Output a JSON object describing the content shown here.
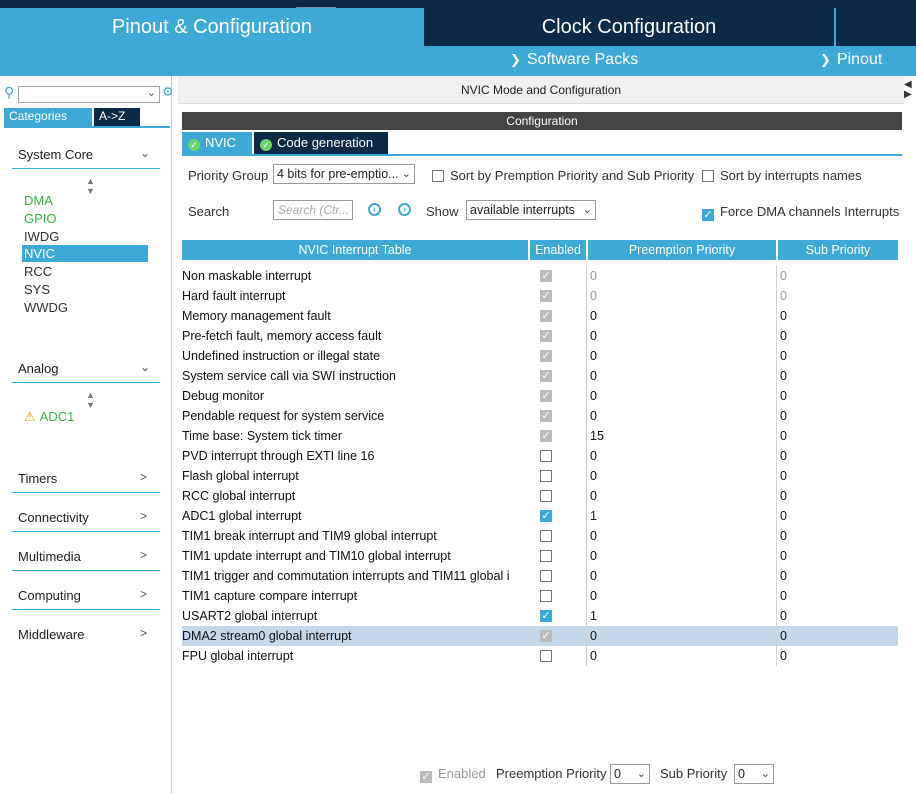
{
  "tabs": {
    "pinout": "Pinout & Configuration",
    "clock": "Clock Configuration"
  },
  "subbar": {
    "software_packs": "Software Packs",
    "pinout": "Pinout"
  },
  "left": {
    "tab_categories": "Categories",
    "tab_az": "A->Z",
    "system_core": {
      "label": "System Core",
      "items": [
        "DMA",
        "GPIO",
        "IWDG",
        "NVIC",
        "RCC",
        "SYS",
        "WWDG"
      ]
    },
    "analog": {
      "label": "Analog",
      "items": [
        "ADC1"
      ]
    },
    "categories": [
      "Timers",
      "Connectivity",
      "Multimedia",
      "Computing",
      "Middleware"
    ]
  },
  "right": {
    "mode_title": "NVIC Mode and Configuration",
    "config_bar": "Configuration",
    "tab_nvic": "NVIC",
    "tab_code": "Code generation",
    "priority_group_label": "Priority Group",
    "priority_group_value": "4 bits for pre-emptio...",
    "sort_premption": "Sort by Premption Priority and Sub Priority",
    "sort_names": "Sort by interrupts names",
    "search_label": "Search",
    "search_placeholder": "Search (Ctr...",
    "show_label": "Show",
    "show_value": "available interrupts",
    "force_dma": "Force DMA channels Interrupts",
    "headers": [
      "NVIC Interrupt Table",
      "Enabled",
      "Preemption Priority",
      "Sub Priority"
    ],
    "rows": [
      {
        "name": "Non maskable interrupt",
        "enabled": "locked",
        "pre": "0",
        "sub": "0",
        "muted": true
      },
      {
        "name": "Hard fault interrupt",
        "enabled": "locked",
        "pre": "0",
        "sub": "0",
        "muted": true
      },
      {
        "name": "Memory management fault",
        "enabled": "locked",
        "pre": "0",
        "sub": "0"
      },
      {
        "name": "Pre-fetch fault, memory access fault",
        "enabled": "locked",
        "pre": "0",
        "sub": "0"
      },
      {
        "name": "Undefined instruction or illegal state",
        "enabled": "locked",
        "pre": "0",
        "sub": "0"
      },
      {
        "name": "System service call via SWI instruction",
        "enabled": "locked",
        "pre": "0",
        "sub": "0"
      },
      {
        "name": "Debug monitor",
        "enabled": "locked",
        "pre": "0",
        "sub": "0"
      },
      {
        "name": "Pendable request for system service",
        "enabled": "locked",
        "pre": "0",
        "sub": "0"
      },
      {
        "name": "Time base: System tick timer",
        "enabled": "locked",
        "pre": "15",
        "sub": "0"
      },
      {
        "name": "PVD interrupt through EXTI line 16",
        "enabled": "off",
        "pre": "0",
        "sub": "0"
      },
      {
        "name": "Flash global interrupt",
        "enabled": "off",
        "pre": "0",
        "sub": "0"
      },
      {
        "name": "RCC global interrupt",
        "enabled": "off",
        "pre": "0",
        "sub": "0"
      },
      {
        "name": "ADC1 global interrupt",
        "enabled": "on",
        "pre": "1",
        "sub": "0"
      },
      {
        "name": "TIM1 break interrupt and TIM9 global interrupt",
        "enabled": "off",
        "pre": "0",
        "sub": "0"
      },
      {
        "name": "TIM1 update interrupt and TIM10 global interrupt",
        "enabled": "off",
        "pre": "0",
        "sub": "0"
      },
      {
        "name": "TIM1 trigger and commutation interrupts and TIM11 global i",
        "enabled": "off",
        "pre": "0",
        "sub": "0"
      },
      {
        "name": "TIM1 capture compare interrupt",
        "enabled": "off",
        "pre": "0",
        "sub": "0"
      },
      {
        "name": "USART2 global interrupt",
        "enabled": "on",
        "pre": "1",
        "sub": "0"
      },
      {
        "name": "DMA2 stream0 global interrupt",
        "enabled": "locked",
        "pre": "0",
        "sub": "0",
        "highlight": true
      },
      {
        "name": "FPU global interrupt",
        "enabled": "off",
        "pre": "0",
        "sub": "0"
      }
    ],
    "footer": {
      "enabled_label": "Enabled",
      "pre_label": "Preemption Priority",
      "pre_value": "0",
      "sub_label": "Sub Priority",
      "sub_value": "0"
    }
  },
  "colors": {
    "accent": "#3ea9d6",
    "navy": "#0b2a47",
    "green": "#3cb04a",
    "highlight": "#c5d8ea"
  }
}
